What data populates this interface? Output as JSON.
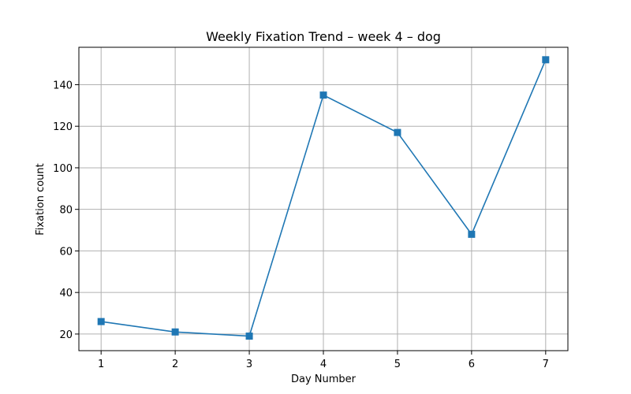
{
  "chart_data": {
    "type": "line",
    "title": "Weekly Fixation Trend – week 4 – dog",
    "xlabel": "Day Number",
    "ylabel": "Fixation count",
    "x": [
      1,
      2,
      3,
      4,
      5,
      6,
      7
    ],
    "series": [
      {
        "values": [
          26,
          21,
          19,
          135,
          117,
          68,
          152
        ],
        "color": "#1f77b4",
        "marker": "square"
      }
    ],
    "xlim": [
      0.7,
      7.3
    ],
    "ylim": [
      12,
      158
    ],
    "xticks": [
      1,
      2,
      3,
      4,
      5,
      6,
      7
    ],
    "yticks": [
      20,
      40,
      60,
      80,
      100,
      120,
      140
    ],
    "grid": true,
    "grid_color": "#b0b0b0",
    "axis_color": "#000000"
  }
}
